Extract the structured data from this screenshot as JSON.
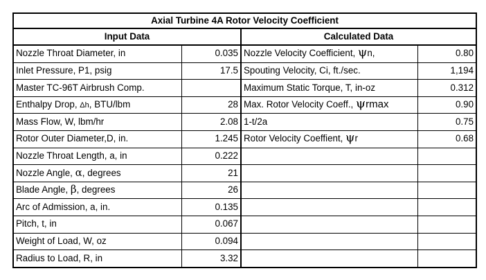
{
  "title": "Axial Turbine 4A Rotor Velocity Coefficient",
  "input_header": "Input Data",
  "calc_header": "Calculated Data",
  "input": [
    {
      "label": "Nozzle Throat Diameter, in",
      "value": "0.035"
    },
    {
      "label": "Inlet Pressure, P1, psig",
      "value": "17.5"
    },
    {
      "label": "Master TC-96T Airbrush Comp.",
      "value": ""
    },
    {
      "label_pre": "Enthalpy Drop, ",
      "label_sym": "Δh",
      "label_post": ", BTU/lbm",
      "value": "28"
    },
    {
      "label": "Mass Flow, W, lbm/hr",
      "value": "2.08"
    },
    {
      "label": "Rotor Outer Diameter,D, in.",
      "value": "1.245"
    },
    {
      "label": "Nozzle Throat Length, a, in",
      "value": "0.222"
    },
    {
      "label_pre": "Nozzle Angle, ",
      "label_sym": "α",
      "label_post": ", degrees",
      "value": "21"
    },
    {
      "label_pre": "Blade Angle, ",
      "label_sym": "β",
      "label_post": ", degrees",
      "value": "26"
    },
    {
      "label": "Arc of Admission, a, in.",
      "value": "0.135"
    },
    {
      "label": "Pitch, t, in",
      "value": "0.067"
    },
    {
      "label": "Weight of Load, W, oz",
      "value": "0.094"
    },
    {
      "label": "Radius to Load, R, in",
      "value": "3.32"
    }
  ],
  "calculated": [
    {
      "label_pre": "Nozzle Velocity Coefficient, ",
      "label_sym": "ψ",
      "label_post": "n,",
      "value": "0.80"
    },
    {
      "label": "Spouting Velocity, Ci, ft./sec.",
      "value": "1,194"
    },
    {
      "label": "Maximum Static Torque, T, in-oz",
      "value": "0.312"
    },
    {
      "label_pre": "Max. Rotor Velocity Coeff., ",
      "label_sym": "ψ",
      "label_post": "rmax",
      "value": "0.90"
    },
    {
      "label": "1-t/2a",
      "value": "0.75"
    },
    {
      "label_pre": "Rotor Velocity Coeffient, ",
      "label_sym": "ψ",
      "label_post": "r",
      "value": "0.68"
    }
  ]
}
